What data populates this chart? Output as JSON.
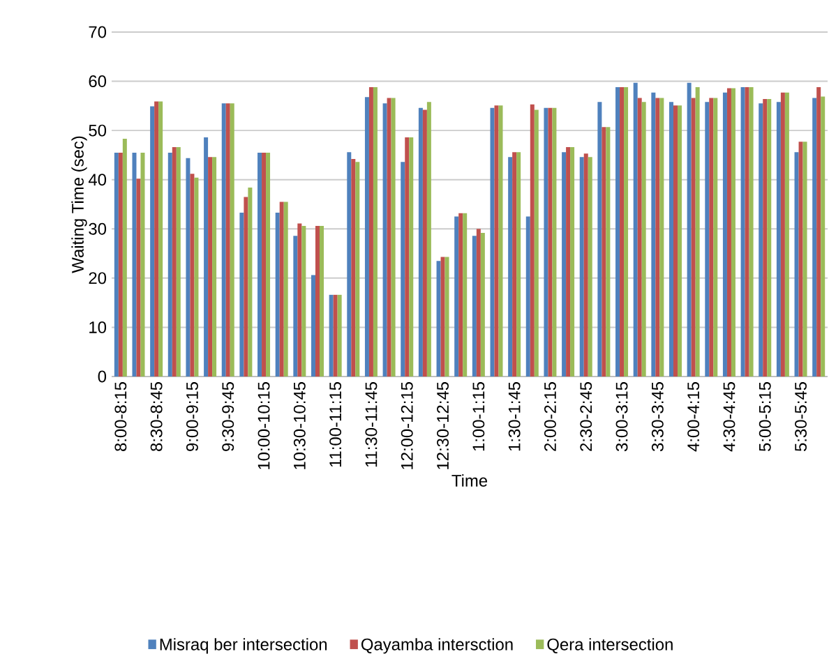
{
  "chart_data": {
    "type": "bar",
    "xlabel": "Time",
    "ylabel": "Waiting Time (sec)",
    "categories": [
      "8:00-8:15",
      null,
      "8:30-8:45",
      null,
      "9:00-9:15",
      null,
      "9:30-9:45",
      null,
      "10:00-10:15",
      null,
      "10:30-10:45",
      null,
      "11:00-11:15",
      null,
      "11:30-11:45",
      null,
      "12:00-12:15",
      null,
      "12:30-12:45",
      null,
      "1:00-1:15",
      null,
      "1:30-1:45",
      null,
      "2:00-2:15",
      null,
      "2:30-2:45",
      null,
      "3:00-3:15",
      null,
      "3:30-3:45",
      null,
      "4:00-4:15",
      null,
      "4:30-4:45",
      null,
      "5:00-5:15",
      null,
      "5:30-5:45",
      null
    ],
    "series": [
      {
        "name": "Misraq ber intersection",
        "color": "#4f81bd",
        "values": [
          45.5,
          45.5,
          54.9,
          45.5,
          44.4,
          48.6,
          55.5,
          33.3,
          45.5,
          33.3,
          28.6,
          20.6,
          16.6,
          45.6,
          56.8,
          55.5,
          43.6,
          54.6,
          23.5,
          32.5,
          28.6,
          54.6,
          44.6,
          32.5,
          54.6,
          45.6,
          44.6,
          55.8,
          58.8,
          59.7,
          57.7,
          55.8,
          59.7,
          55.8,
          57.7,
          58.8,
          55.5,
          55.8,
          45.6,
          56.6
        ]
      },
      {
        "name": "Qayamba intersction",
        "color": "#c0504d",
        "values": [
          45.5,
          40.2,
          55.9,
          46.6,
          41.2,
          44.6,
          55.5,
          36.5,
          45.5,
          35.5,
          31.1,
          30.6,
          16.6,
          44.2,
          58.8,
          56.6,
          48.6,
          54.2,
          24.3,
          33.2,
          30.0,
          55.1,
          45.6,
          55.3,
          54.6,
          46.6,
          45.3,
          50.7,
          58.8,
          56.6,
          56.6,
          55.1,
          56.6,
          56.6,
          58.6,
          58.8,
          56.4,
          57.7,
          47.7,
          58.8
        ]
      },
      {
        "name": "Qera intersection",
        "color": "#9bbb59",
        "values": [
          48.3,
          45.5,
          55.9,
          46.6,
          40.4,
          44.6,
          55.5,
          38.4,
          45.5,
          35.5,
          30.6,
          30.6,
          16.6,
          43.6,
          58.8,
          56.6,
          48.6,
          55.8,
          24.3,
          33.2,
          29.2,
          55.1,
          45.6,
          54.2,
          54.6,
          46.6,
          44.6,
          50.7,
          58.8,
          55.8,
          56.6,
          55.1,
          58.8,
          56.6,
          58.6,
          58.8,
          56.4,
          57.7,
          47.7,
          56.9
        ]
      }
    ],
    "ylim": [
      0,
      70
    ],
    "yticks": [
      0,
      10,
      20,
      30,
      40,
      50,
      60,
      70
    ],
    "grid": "y",
    "legend": "bottom"
  }
}
